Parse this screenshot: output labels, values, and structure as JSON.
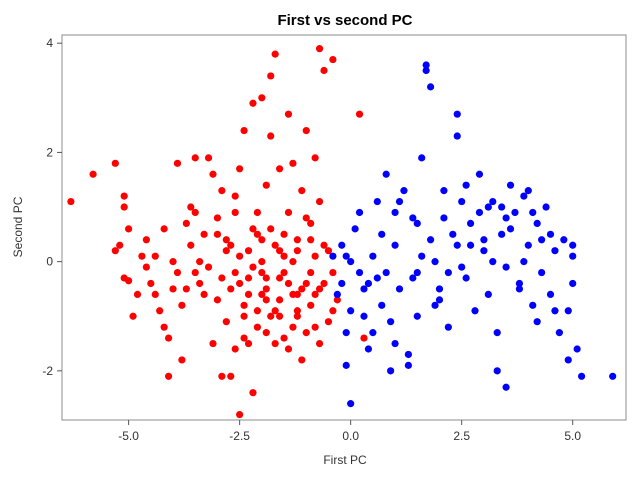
{
  "chart_data": {
    "type": "scatter",
    "title": "First vs second PC",
    "xlabel": "First PC",
    "ylabel": "Second PC",
    "xlim": [
      -6.5,
      6.2
    ],
    "ylim": [
      -2.9,
      4.15
    ],
    "xticks": [
      -5.0,
      -2.5,
      0.0,
      2.5,
      5.0
    ],
    "xtick_labels": [
      "-5.0",
      "-2.5",
      "0.0",
      "2.5",
      "5.0"
    ],
    "yticks": [
      -2,
      0,
      2,
      4
    ],
    "ytick_labels": [
      "-2",
      "0",
      "2",
      "4"
    ],
    "grid": false,
    "series": [
      {
        "color": "#ff0000",
        "points": [
          [
            -6.3,
            1.1
          ],
          [
            -5.8,
            1.6
          ],
          [
            -5.3,
            1.8
          ],
          [
            -5.1,
            1.2
          ],
          [
            -5.1,
            1.0
          ],
          [
            -5.2,
            0.3
          ],
          [
            -5.0,
            0.6
          ],
          [
            -5.1,
            -0.3
          ],
          [
            -4.8,
            -0.6
          ],
          [
            -4.9,
            -1.0
          ],
          [
            -4.6,
            0.4
          ],
          [
            -4.5,
            -0.4
          ],
          [
            -4.4,
            0.1
          ],
          [
            -4.3,
            -0.9
          ],
          [
            -4.2,
            -1.2
          ],
          [
            -4.1,
            -1.4
          ],
          [
            -4.0,
            -0.5
          ],
          [
            -3.9,
            -0.2
          ],
          [
            -3.8,
            -0.8
          ],
          [
            -3.7,
            0.7
          ],
          [
            -3.6,
            0.3
          ],
          [
            -3.5,
            1.9
          ],
          [
            -3.5,
            0.9
          ],
          [
            -3.4,
            -0.4
          ],
          [
            -3.3,
            0.5
          ],
          [
            -3.2,
            -0.1
          ],
          [
            -3.1,
            1.6
          ],
          [
            -3.0,
            0.8
          ],
          [
            -3.0,
            -0.7
          ],
          [
            -2.9,
            1.3
          ],
          [
            -2.8,
            0.4
          ],
          [
            -2.8,
            -1.1
          ],
          [
            -2.7,
            -0.5
          ],
          [
            -2.6,
            0.9
          ],
          [
            -2.6,
            -1.6
          ],
          [
            -2.5,
            1.7
          ],
          [
            -2.5,
            0.1
          ],
          [
            -2.4,
            -0.8
          ],
          [
            -2.4,
            2.4
          ],
          [
            -2.3,
            -0.3
          ],
          [
            -2.2,
            0.6
          ],
          [
            -2.2,
            2.9
          ],
          [
            -2.1,
            -1.2
          ],
          [
            -2.0,
            3.0
          ],
          [
            -2.0,
            0.0
          ],
          [
            -1.9,
            -0.5
          ],
          [
            -1.9,
            1.4
          ],
          [
            -1.8,
            2.3
          ],
          [
            -1.8,
            3.4
          ],
          [
            -1.7,
            3.8
          ],
          [
            -1.7,
            -0.9
          ],
          [
            -1.6,
            0.2
          ],
          [
            -1.6,
            1.7
          ],
          [
            -1.5,
            -0.2
          ],
          [
            -1.5,
            -1.4
          ],
          [
            -1.4,
            0.9
          ],
          [
            -1.4,
            2.7
          ],
          [
            -1.3,
            -0.6
          ],
          [
            -1.3,
            1.8
          ],
          [
            -1.2,
            0.4
          ],
          [
            -1.2,
            -1.0
          ],
          [
            -1.1,
            1.3
          ],
          [
            -1.0,
            -0.4
          ],
          [
            -1.0,
            2.4
          ],
          [
            -0.9,
            0.7
          ],
          [
            -0.9,
            -0.8
          ],
          [
            -0.8,
            1.9
          ],
          [
            -0.8,
            0.1
          ],
          [
            -0.7,
            -0.5
          ],
          [
            -0.7,
            3.9
          ],
          [
            -0.6,
            3.5
          ],
          [
            -0.6,
            0.3
          ],
          [
            -0.5,
            -1.1
          ],
          [
            -0.4,
            -0.2
          ],
          [
            -0.4,
            3.7
          ],
          [
            -0.3,
            -0.7
          ],
          [
            0.2,
            2.7
          ],
          [
            0.3,
            -1.4
          ],
          [
            -5.0,
            -0.35
          ],
          [
            -4.7,
            0.1
          ],
          [
            -4.2,
            0.6
          ],
          [
            -3.9,
            1.8
          ],
          [
            -3.6,
            1.0
          ],
          [
            -3.4,
            0.0
          ],
          [
            -3.2,
            1.9
          ],
          [
            -3.1,
            -1.5
          ],
          [
            -2.9,
            -0.3
          ],
          [
            -2.7,
            -2.1
          ],
          [
            -2.6,
            1.2
          ],
          [
            -2.4,
            -1.4
          ],
          [
            -2.3,
            0.2
          ],
          [
            -2.2,
            -2.4
          ],
          [
            -2.1,
            0.9
          ],
          [
            -2.0,
            -0.2
          ],
          [
            -1.9,
            -0.7
          ],
          [
            -1.8,
            0.6
          ],
          [
            -1.7,
            -1.5
          ],
          [
            -1.6,
            -0.3
          ],
          [
            -1.5,
            0.5
          ],
          [
            -1.4,
            -1.6
          ],
          [
            -1.3,
            0.0
          ],
          [
            -1.2,
            -0.6
          ],
          [
            -1.1,
            -1.8
          ],
          [
            -1.0,
            0.8
          ],
          [
            -0.9,
            -0.2
          ],
          [
            -0.8,
            -1.2
          ],
          [
            -0.7,
            1.1
          ],
          [
            -0.6,
            -0.4
          ],
          [
            -0.5,
            0.2
          ],
          [
            -0.4,
            -0.9
          ],
          [
            -3.0,
            0.5
          ],
          [
            -2.7,
            0.3
          ],
          [
            -2.5,
            -0.4
          ],
          [
            -2.3,
            -0.6
          ],
          [
            -2.2,
            -0.1
          ],
          [
            -2.1,
            -0.9
          ],
          [
            -2.0,
            0.4
          ],
          [
            -1.9,
            -0.3
          ],
          [
            -1.8,
            -1.0
          ],
          [
            -1.7,
            0.3
          ],
          [
            -1.6,
            -0.7
          ],
          [
            -1.5,
            0.1
          ],
          [
            -1.4,
            -0.4
          ],
          [
            -1.3,
            -1.2
          ],
          [
            -1.2,
            0.2
          ],
          [
            -1.1,
            -0.5
          ],
          [
            -1.0,
            -1.3
          ],
          [
            -0.9,
            0.4
          ],
          [
            -0.8,
            -0.6
          ],
          [
            -0.7,
            -1.5
          ],
          [
            -2.4,
            -1.0
          ],
          [
            -2.6,
            -0.2
          ],
          [
            -2.8,
            0.2
          ],
          [
            -3.3,
            -0.6
          ],
          [
            -3.5,
            -0.2
          ],
          [
            -3.7,
            -0.5
          ],
          [
            -4.0,
            0.0
          ],
          [
            -4.4,
            -0.6
          ],
          [
            -4.6,
            -0.1
          ],
          [
            -5.3,
            0.2
          ],
          [
            -2.5,
            -2.8
          ],
          [
            -2.9,
            -2.1
          ],
          [
            -4.1,
            -2.1
          ],
          [
            -3.8,
            -1.8
          ],
          [
            -1.9,
            -1.3
          ],
          [
            -1.6,
            -1.0
          ],
          [
            -1.2,
            -0.9
          ],
          [
            -2.0,
            -0.6
          ],
          [
            -2.3,
            -1.5
          ],
          [
            -2.1,
            0.5
          ]
        ]
      },
      {
        "color": "#0000ff",
        "points": [
          [
            -0.3,
            -0.6
          ],
          [
            -0.2,
            0.3
          ],
          [
            -0.1,
            -1.3
          ],
          [
            0.0,
            -0.9
          ],
          [
            0.1,
            0.6
          ],
          [
            0.2,
            -0.2
          ],
          [
            0.3,
            -0.5
          ],
          [
            0.4,
            -1.6
          ],
          [
            0.5,
            0.1
          ],
          [
            0.6,
            -0.3
          ],
          [
            0.7,
            -0.8
          ],
          [
            0.8,
            1.6
          ],
          [
            0.9,
            -1.1
          ],
          [
            1.0,
            0.3
          ],
          [
            1.1,
            -0.5
          ],
          [
            1.2,
            1.3
          ],
          [
            1.3,
            -1.7
          ],
          [
            1.4,
            0.8
          ],
          [
            1.5,
            -0.2
          ],
          [
            1.6,
            1.9
          ],
          [
            1.7,
            3.6
          ],
          [
            1.8,
            3.2
          ],
          [
            1.7,
            3.5
          ],
          [
            1.9,
            0.0
          ],
          [
            2.0,
            -0.7
          ],
          [
            2.1,
            1.3
          ],
          [
            2.2,
            -1.2
          ],
          [
            2.3,
            0.5
          ],
          [
            2.4,
            2.7
          ],
          [
            2.4,
            2.3
          ],
          [
            2.5,
            1.1
          ],
          [
            2.6,
            -0.3
          ],
          [
            2.7,
            0.7
          ],
          [
            2.8,
            -0.9
          ],
          [
            2.9,
            1.6
          ],
          [
            3.0,
            0.2
          ],
          [
            3.1,
            -0.6
          ],
          [
            3.2,
            1.1
          ],
          [
            3.3,
            -1.3
          ],
          [
            3.4,
            0.5
          ],
          [
            3.5,
            -0.1
          ],
          [
            3.6,
            1.4
          ],
          [
            3.7,
            0.9
          ],
          [
            3.8,
            -0.4
          ],
          [
            3.9,
            1.2
          ],
          [
            4.0,
            0.3
          ],
          [
            4.1,
            -0.8
          ],
          [
            4.2,
            0.7
          ],
          [
            4.3,
            -0.2
          ],
          [
            4.4,
            1.0
          ],
          [
            4.5,
            -0.6
          ],
          [
            4.6,
            0.2
          ],
          [
            4.7,
            -1.3
          ],
          [
            4.8,
            0.4
          ],
          [
            4.9,
            -0.9
          ],
          [
            5.0,
            0.1
          ],
          [
            5.1,
            -1.6
          ],
          [
            5.2,
            -2.1
          ],
          [
            5.9,
            -2.1
          ],
          [
            4.9,
            -1.8
          ],
          [
            3.3,
            -2.0
          ],
          [
            3.5,
            -2.3
          ],
          [
            0.0,
            -2.6
          ],
          [
            0.9,
            -2.0
          ],
          [
            1.3,
            -1.9
          ],
          [
            -0.1,
            -1.9
          ],
          [
            0.5,
            -1.3
          ],
          [
            1.0,
            -1.5
          ],
          [
            1.5,
            -1.0
          ],
          [
            2.0,
            -0.5
          ],
          [
            2.5,
            -0.1
          ],
          [
            3.0,
            0.4
          ],
          [
            3.5,
            0.8
          ],
          [
            4.0,
            1.3
          ],
          [
            4.5,
            0.5
          ],
          [
            5.0,
            -0.4
          ],
          [
            4.2,
            -1.1
          ],
          [
            3.8,
            -0.5
          ],
          [
            3.2,
            0.0
          ],
          [
            2.7,
            0.3
          ],
          [
            2.2,
            -0.2
          ],
          [
            1.8,
            0.4
          ],
          [
            1.4,
            -0.3
          ],
          [
            1.0,
            0.9
          ],
          [
            0.6,
            1.1
          ],
          [
            0.3,
            -1.0
          ],
          [
            -0.1,
            0.1
          ],
          [
            0.2,
            0.9
          ],
          [
            0.7,
            0.5
          ],
          [
            1.1,
            1.1
          ],
          [
            1.6,
            0.1
          ],
          [
            2.1,
            0.8
          ],
          [
            2.6,
            1.4
          ],
          [
            3.1,
            1.0
          ],
          [
            3.6,
            0.6
          ],
          [
            4.1,
            0.9
          ],
          [
            4.6,
            -0.9
          ],
          [
            5.0,
            0.3
          ],
          [
            4.3,
            0.4
          ],
          [
            3.9,
            0.0
          ],
          [
            3.4,
            1.0
          ],
          [
            2.9,
            0.9
          ],
          [
            2.4,
            0.3
          ],
          [
            1.9,
            -0.8
          ],
          [
            1.5,
            0.7
          ],
          [
            0.8,
            -0.2
          ],
          [
            0.4,
            -0.4
          ],
          [
            0.0,
            0.0
          ],
          [
            -0.2,
            -0.4
          ],
          [
            -0.4,
            0.1
          ]
        ]
      }
    ]
  }
}
